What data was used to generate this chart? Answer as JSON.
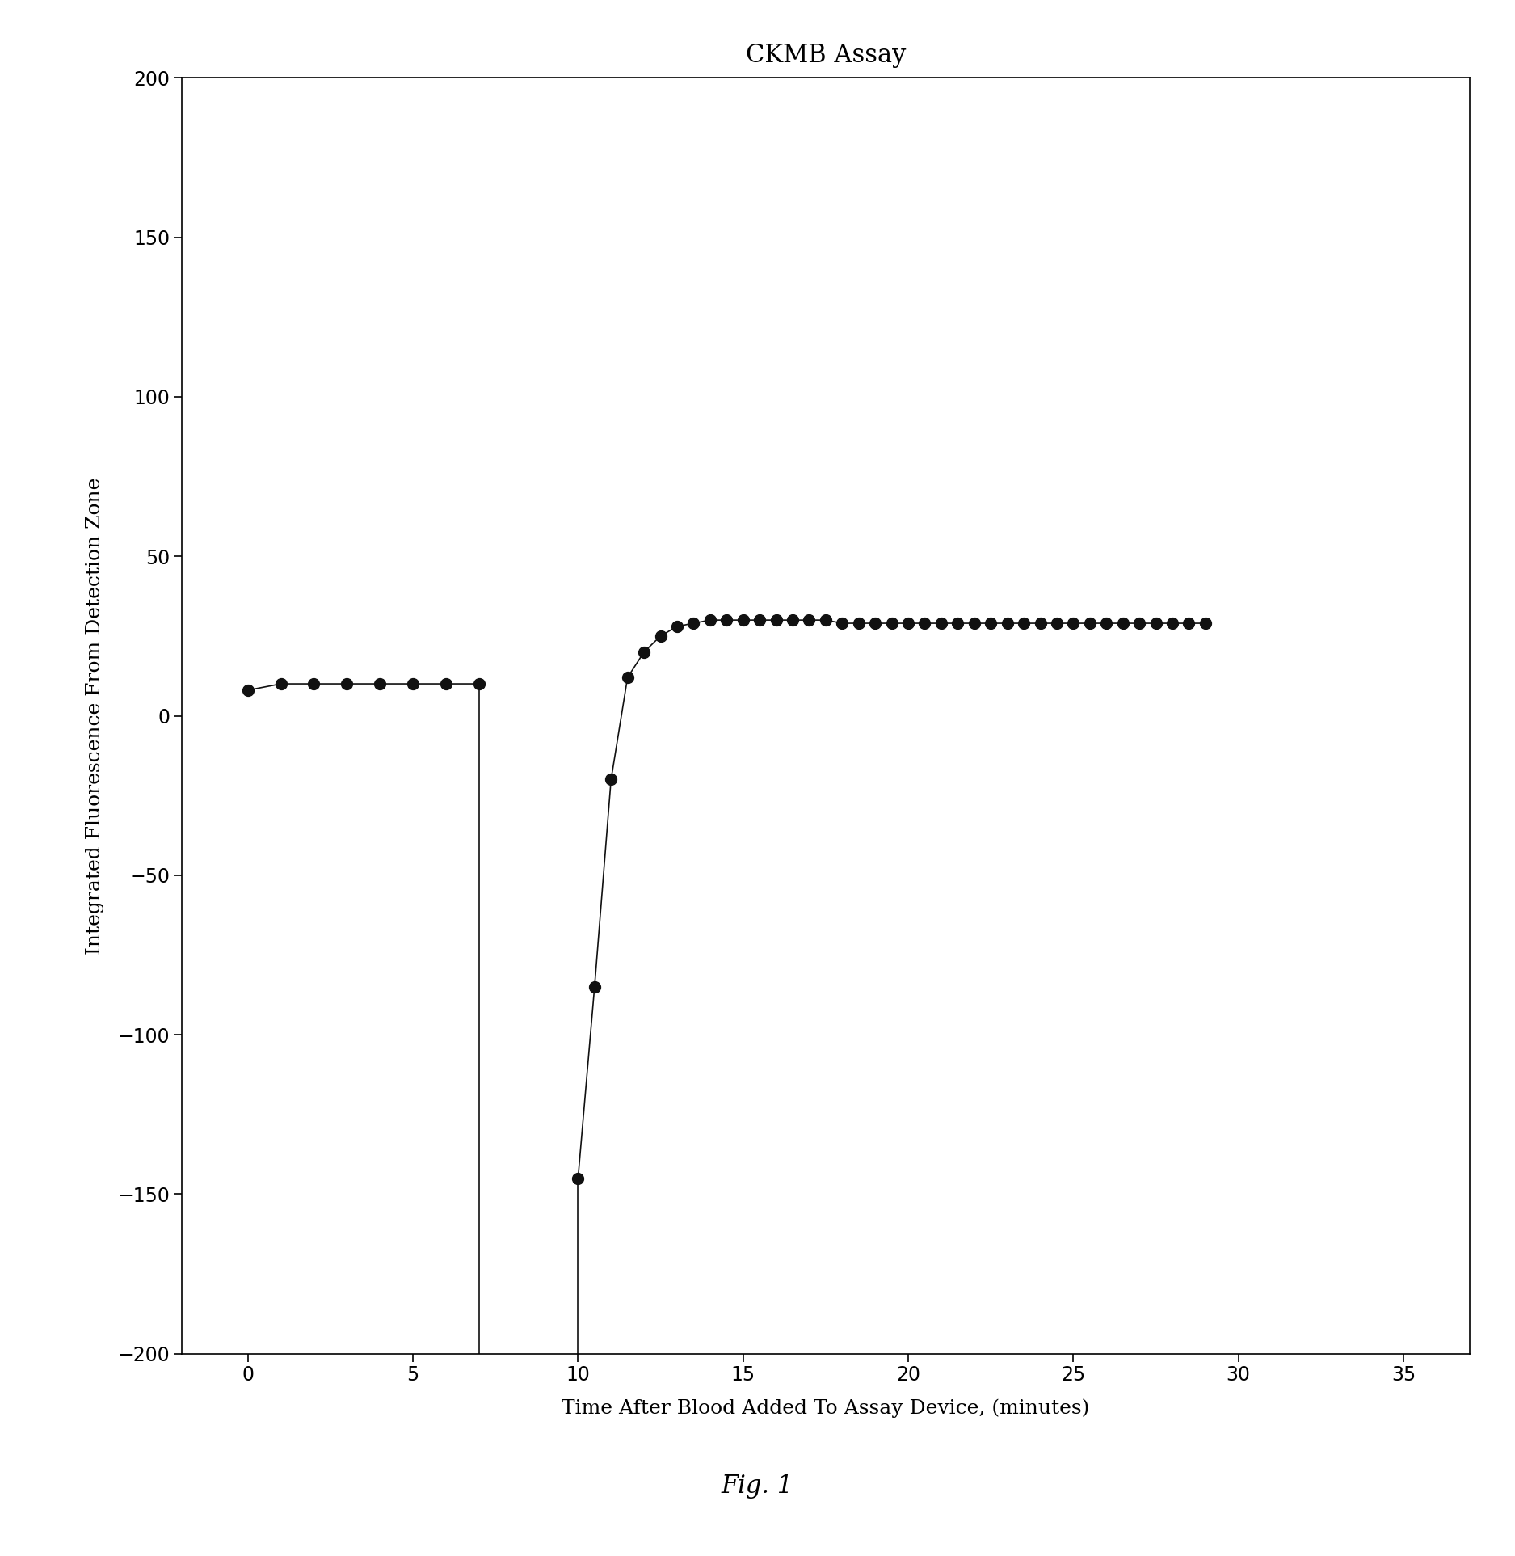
{
  "title": "CKMB Assay",
  "xlabel": "Time After Blood Added To Assay Device, (minutes)",
  "ylabel": "Integrated Fluorescence From Detection Zone",
  "fig_label": "Fig. 1",
  "xlim": [
    -2,
    37
  ],
  "ylim": [
    -200,
    200
  ],
  "xticks": [
    0,
    5,
    10,
    15,
    20,
    25,
    30,
    35
  ],
  "yticks": [
    -200,
    -150,
    -100,
    -50,
    0,
    50,
    100,
    150,
    200
  ],
  "segment1_x": [
    0,
    1,
    2,
    3,
    4,
    5,
    6,
    7
  ],
  "segment1_y": [
    8,
    10,
    10,
    10,
    10,
    10,
    10,
    10
  ],
  "drop_x": 7,
  "drop_top_y": 10,
  "drop_bottom_y": -205,
  "rise_x": 10,
  "rise_bottom_y": -205,
  "segment2_x": [
    10,
    10.5,
    11,
    11.5,
    12,
    12.5,
    13,
    13.5,
    14,
    14.5,
    15,
    15.5,
    16,
    16.5,
    17,
    17.5,
    18,
    18.5,
    19,
    19.5,
    20,
    20.5,
    21,
    21.5,
    22,
    22.5,
    23,
    23.5,
    24,
    24.5,
    25,
    25.5,
    26,
    26.5,
    27,
    27.5,
    28,
    28.5,
    29
  ],
  "segment2_y": [
    -145,
    -85,
    -20,
    12,
    20,
    25,
    28,
    29,
    30,
    30,
    30,
    30,
    30,
    30,
    30,
    30,
    29,
    29,
    29,
    29,
    29,
    29,
    29,
    29,
    29,
    29,
    29,
    29,
    29,
    29,
    29,
    29,
    29,
    29,
    29,
    29,
    29,
    29,
    29
  ],
  "marker_color": "#111111",
  "line_color": "#111111",
  "background_color": "#ffffff",
  "title_fontsize": 22,
  "label_fontsize": 18,
  "tick_fontsize": 17,
  "fig_label_fontsize": 22
}
